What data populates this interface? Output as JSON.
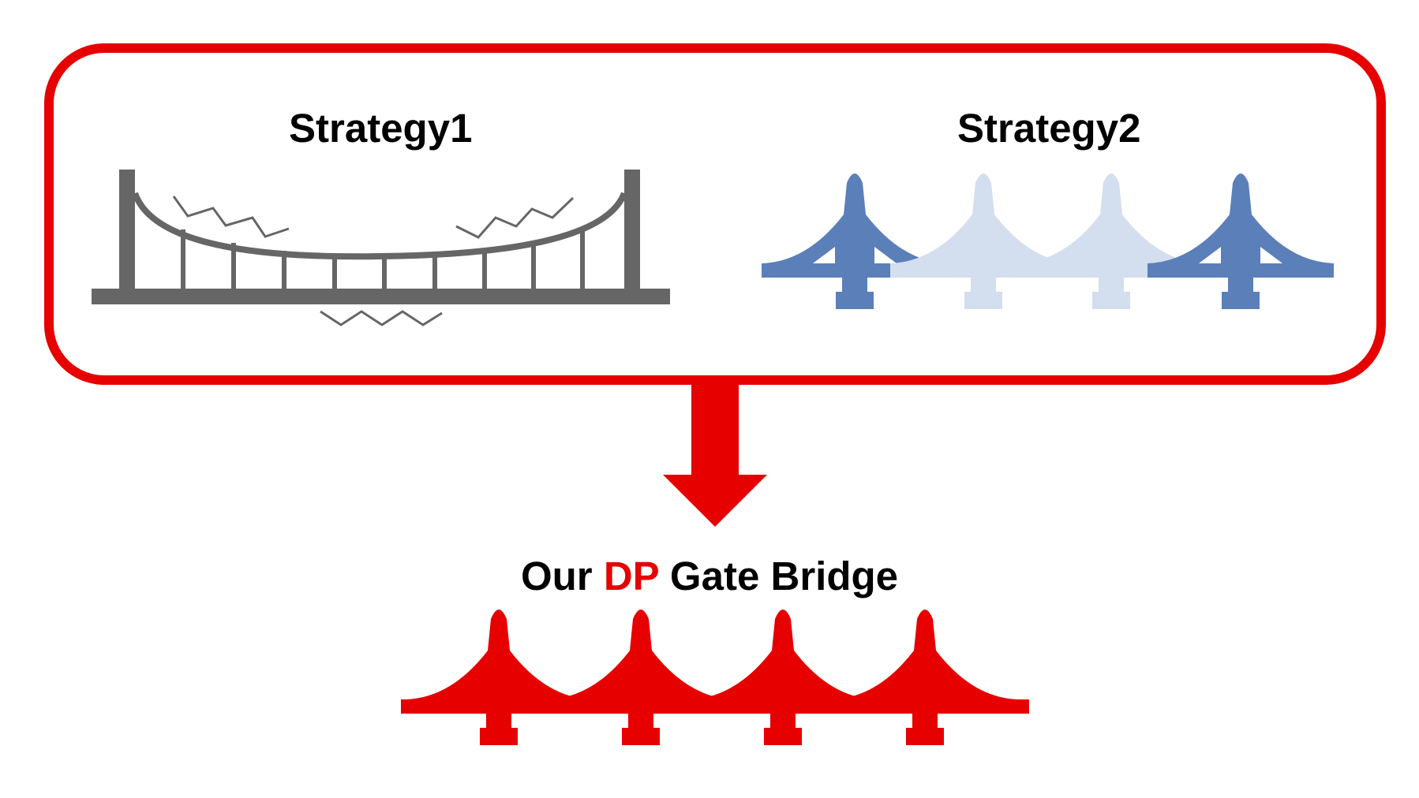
{
  "strategy1": {
    "title": "Strategy1",
    "icon": "suspension-bridge-icon",
    "color": "#666666"
  },
  "strategy2": {
    "title": "Strategy2",
    "icon": "gate-bridge-icon",
    "color_solid": "#5b7fb9",
    "color_faded": "#d3deee"
  },
  "result": {
    "prefix": "Our ",
    "accent": "DP",
    "suffix": " Gate Bridge",
    "icon": "gate-bridge-icon",
    "color": "#e60000"
  },
  "colors": {
    "frame": "#e60000",
    "arrow": "#e60000",
    "text": "#000000"
  }
}
